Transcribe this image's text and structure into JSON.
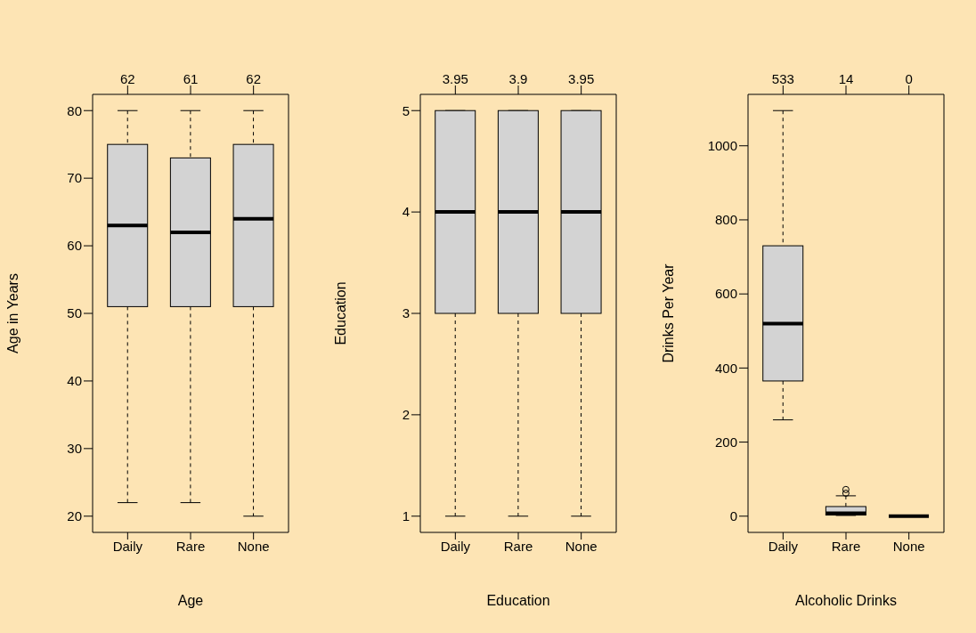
{
  "chart_data": [
    {
      "type": "box",
      "xlabel": "Age",
      "ylabel": "Age in Years",
      "categories": [
        "Daily",
        "Rare",
        "None"
      ],
      "ylim": [
        17.6,
        82.4
      ],
      "yticks": [
        20,
        30,
        40,
        50,
        60,
        70,
        80
      ],
      "annotations": [
        "62",
        "61",
        "62"
      ],
      "boxes": [
        {
          "low": 22,
          "q1": 51,
          "median": 63,
          "q3": 75,
          "high": 80
        },
        {
          "low": 22,
          "q1": 51,
          "median": 62,
          "q3": 73,
          "high": 80
        },
        {
          "low": 20,
          "q1": 51,
          "median": 64,
          "q3": 75,
          "high": 80
        }
      ]
    },
    {
      "type": "box",
      "xlabel": "Education",
      "ylabel": "Education",
      "categories": [
        "Daily",
        "Rare",
        "None"
      ],
      "ylim": [
        0.84,
        5.16
      ],
      "yticks": [
        1,
        2,
        3,
        4,
        5
      ],
      "annotations": [
        "3.95",
        "3.9",
        "3.95"
      ],
      "boxes": [
        {
          "low": 1,
          "q1": 3,
          "median": 4,
          "q3": 5,
          "high": 5
        },
        {
          "low": 1,
          "q1": 3,
          "median": 4,
          "q3": 5,
          "high": 5
        },
        {
          "low": 1,
          "q1": 3,
          "median": 4,
          "q3": 5,
          "high": 5
        }
      ]
    },
    {
      "type": "box",
      "xlabel": "Alcoholic Drinks",
      "ylabel": "Drinks Per Year",
      "categories": [
        "Daily",
        "Rare",
        "None"
      ],
      "ylim": [
        -43.8,
        1138.8
      ],
      "yticks": [
        0,
        200,
        400,
        600,
        800,
        1000
      ],
      "annotations": [
        "533",
        "14",
        "0"
      ],
      "boxes": [
        {
          "low": 260,
          "q1": 365,
          "median": 520,
          "q3": 730,
          "high": 1095
        },
        {
          "low": 2,
          "q1": 3,
          "median": 8,
          "q3": 26,
          "high": 55,
          "outliers": [
            62,
            72
          ]
        },
        {
          "low": 0,
          "q1": 0,
          "median": 0,
          "q3": 0,
          "high": 0
        }
      ]
    }
  ]
}
